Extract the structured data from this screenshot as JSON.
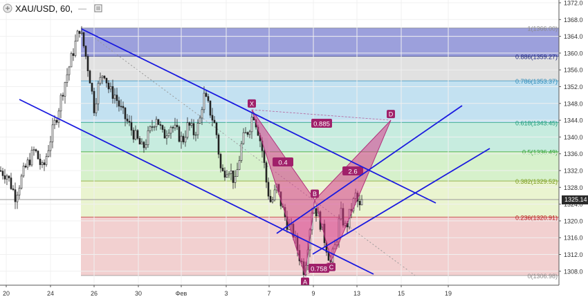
{
  "header": {
    "title": "XAU/USD, 60,",
    "separator": "—"
  },
  "last_price": "1325.14",
  "chart_data": {
    "type": "candlestick",
    "symbol": "XAU/USD",
    "interval": "60",
    "ylim": [
      1306,
      1373
    ],
    "y_ticks": [
      1308,
      1312,
      1316,
      1320,
      1324,
      1328,
      1332,
      1336,
      1340,
      1344,
      1348,
      1352,
      1356,
      1360,
      1364,
      1368,
      1372
    ],
    "x_ticks": [
      "20",
      "24",
      "26",
      "30",
      "Фев",
      "3",
      "7",
      "9",
      "13",
      "15",
      "19"
    ],
    "fib_levels": [
      {
        "ratio": "1",
        "price": "1366.00",
        "label": "1(1366.00)",
        "fill": "#8b8fd6",
        "text": "#8a8a8a"
      },
      {
        "ratio": "0.886",
        "price": "1359.27",
        "label": "0.886(1359.27)",
        "fill": "#dcdcdc",
        "text": "#1a237e"
      },
      {
        "ratio": "0.786",
        "price": "1353.37",
        "label": "0.786(1353.37)",
        "fill": "#b9dcef",
        "text": "#2b8ab8"
      },
      {
        "ratio": "0.618",
        "price": "1343.45",
        "label": "0.618(1343.45)",
        "fill": "#bde9d9",
        "text": "#1f9e7a"
      },
      {
        "ratio": "0.5",
        "price": "1336.49",
        "label": "0.5(1336.49)",
        "fill": "#cfeec2",
        "text": "#2e9e2e"
      },
      {
        "ratio": "0.382",
        "price": "1329.52",
        "label": "0.382(1329.52)",
        "fill": "#e6f2c8",
        "text": "#7a9a1a"
      },
      {
        "ratio": "0.236",
        "price": "1320.91",
        "label": "0.236(1320.91)",
        "fill": "#f0c8c8",
        "text": "#b81c1c"
      },
      {
        "ratio": "0",
        "price": "1306.98",
        "label": "0(1306.98)",
        "fill": null,
        "text": "#8a8a8a"
      }
    ],
    "pattern_points": [
      {
        "label": "X",
        "price": 1346.5
      },
      {
        "label": "A",
        "price": 1307.0
      },
      {
        "label": "B",
        "price": 1325.0
      },
      {
        "label": "C",
        "price": 1310.5
      },
      {
        "label": "D",
        "price": 1344.0
      }
    ],
    "ratios": [
      "0.885",
      "0.4",
      "2.6",
      "0.758"
    ]
  }
}
